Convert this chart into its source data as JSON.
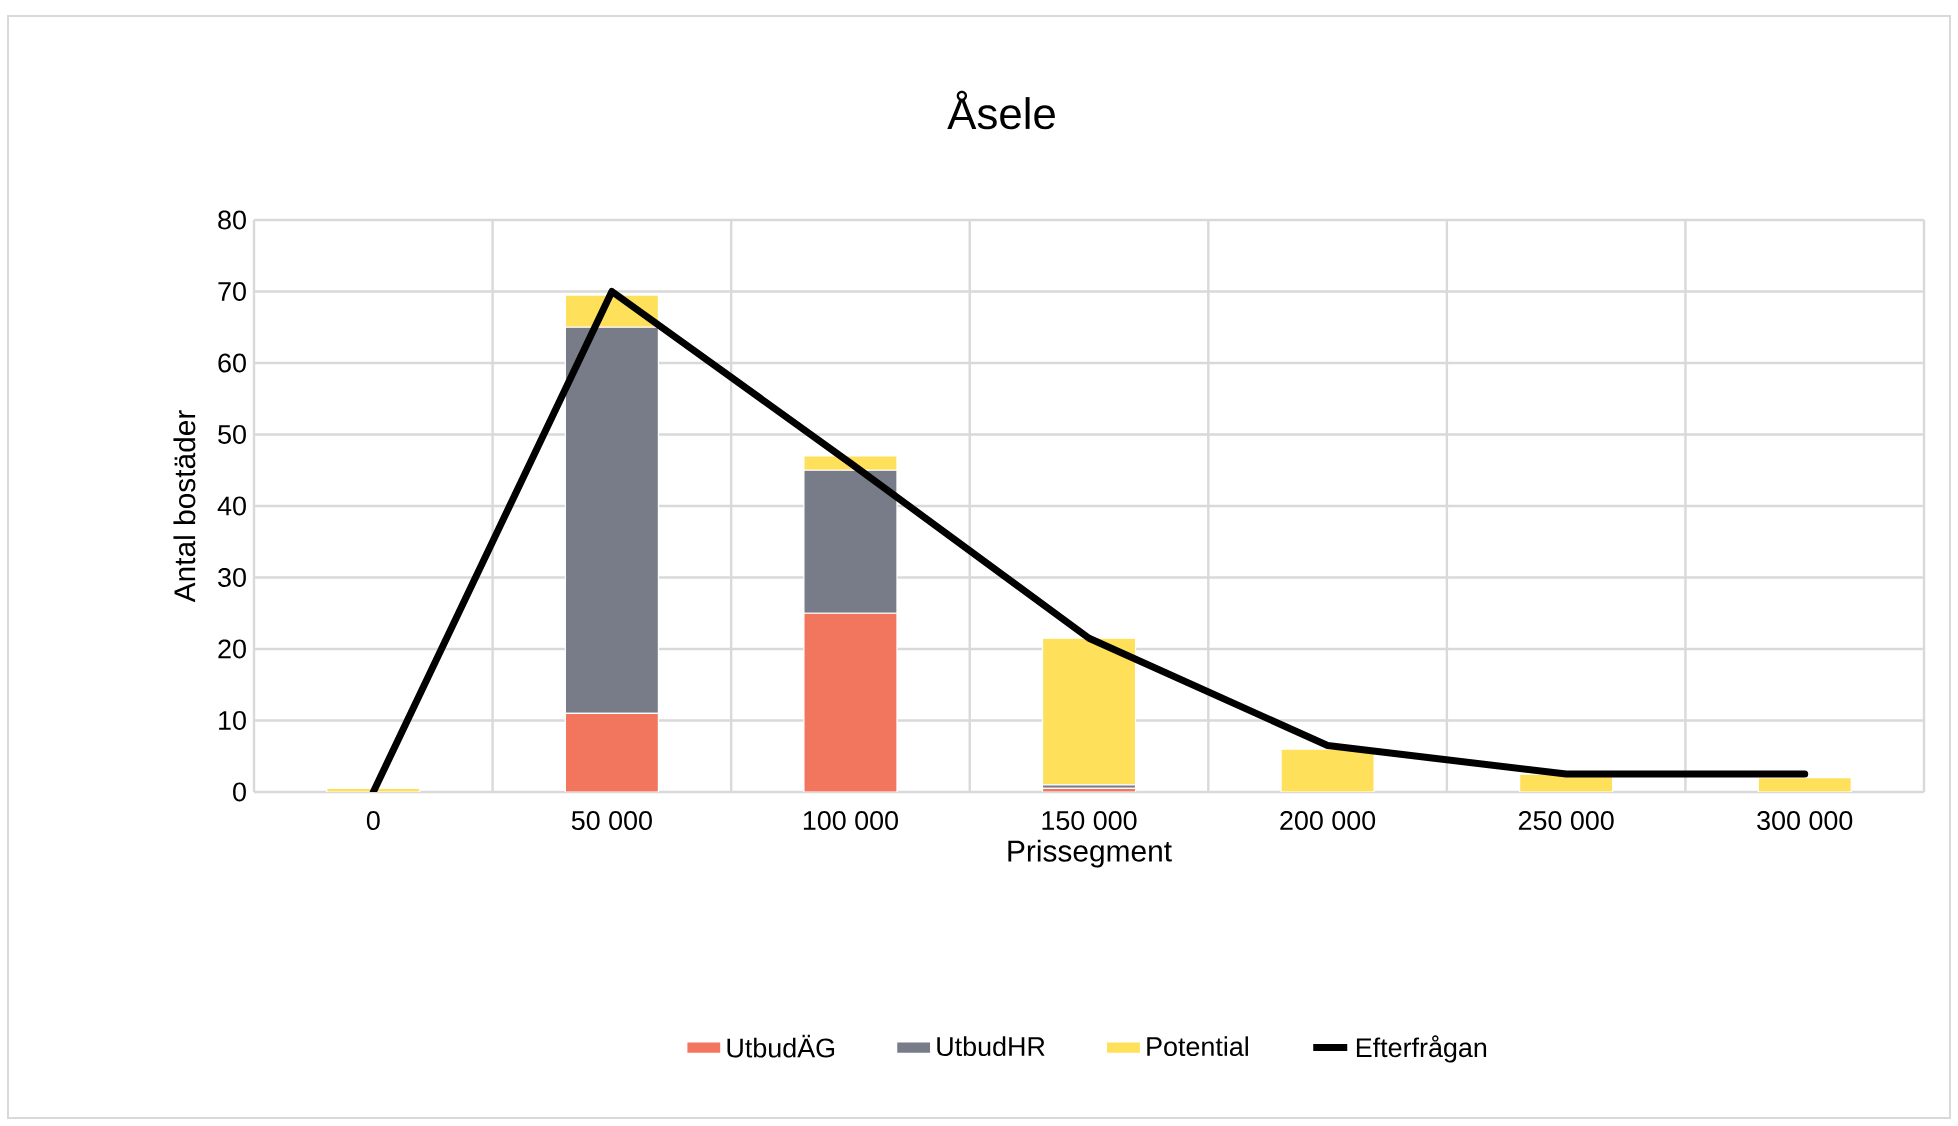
{
  "chart_data": {
    "type": "bar",
    "title": "Åsele",
    "xlabel": "Prissegment",
    "ylabel": "Antal bostäder",
    "categories": [
      "0",
      "50 000",
      "100 000",
      "150 000",
      "200 000",
      "250 000",
      "300 000"
    ],
    "stacked": true,
    "ylim": [
      0,
      80
    ],
    "yticks": [
      0,
      10,
      20,
      30,
      40,
      50,
      60,
      70,
      80
    ],
    "grid": true,
    "legend": "bottom",
    "series": [
      {
        "name": "UtbudÄG",
        "color": "#f2765e",
        "values": [
          0,
          11,
          25,
          0.5,
          0,
          0,
          0
        ]
      },
      {
        "name": "UtbudHR",
        "color": "#787b88",
        "values": [
          0,
          54,
          20,
          0.5,
          0,
          0,
          0
        ]
      },
      {
        "name": "Potential",
        "color": "#ffe05a",
        "values": [
          0.5,
          4.5,
          2,
          20.5,
          6,
          2.5,
          2
        ]
      },
      {
        "name": "Efterfrågan",
        "type": "line",
        "color": "#000000",
        "values": [
          0,
          70,
          46,
          21.5,
          6.5,
          2.5,
          2.5
        ]
      }
    ]
  }
}
